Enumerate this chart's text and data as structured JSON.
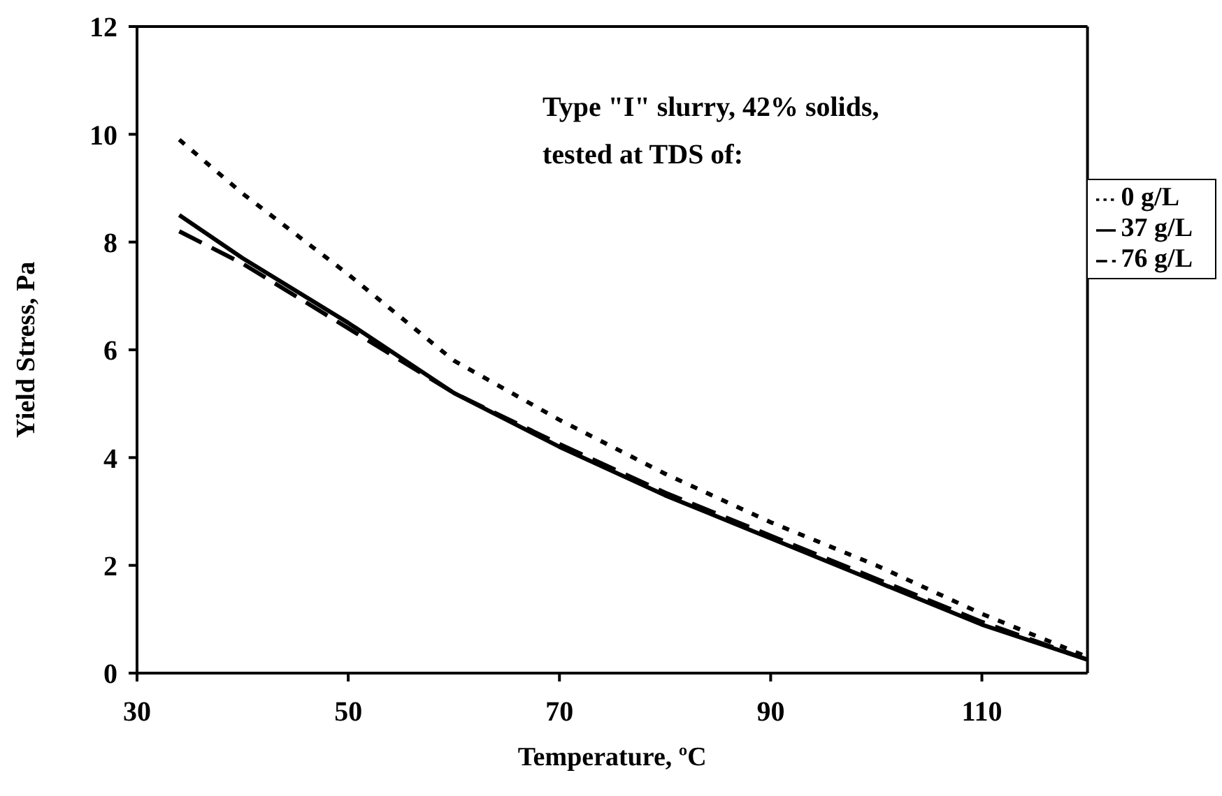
{
  "chart_data": {
    "type": "line",
    "xlabel": "Temperature, ºC",
    "ylabel": "Yield Stress, Pa",
    "annotations": [
      "Type \"I\" slurry, 42% solids, tested at TDS of:"
    ],
    "x": [
      34,
      40,
      50,
      60,
      70,
      80,
      90,
      100,
      110,
      120
    ],
    "series": [
      {
        "name": "0 g/L",
        "color": "#000000",
        "line_style": "dotted",
        "values": [
          9.9,
          8.9,
          7.4,
          5.8,
          4.7,
          3.7,
          2.8,
          2.0,
          1.1,
          0.3
        ]
      },
      {
        "name": "37 g/L",
        "color": "#000000",
        "line_style": "solid",
        "values": [
          8.5,
          7.7,
          6.5,
          5.2,
          4.2,
          3.3,
          2.5,
          1.7,
          0.9,
          0.25
        ]
      },
      {
        "name": "76 g/L",
        "color": "#000000",
        "line_style": "dashed",
        "values": [
          8.2,
          7.6,
          6.4,
          5.2,
          4.25,
          3.35,
          2.55,
          1.75,
          0.95,
          0.25
        ]
      }
    ],
    "xlim": [
      30,
      120
    ],
    "xticks": [
      30,
      50,
      70,
      90,
      110
    ],
    "ylim": [
      0,
      12
    ],
    "yticks": [
      0,
      2,
      4,
      6,
      8,
      10,
      12
    ],
    "grid": false,
    "legend": "top right",
    "marker": "none"
  }
}
